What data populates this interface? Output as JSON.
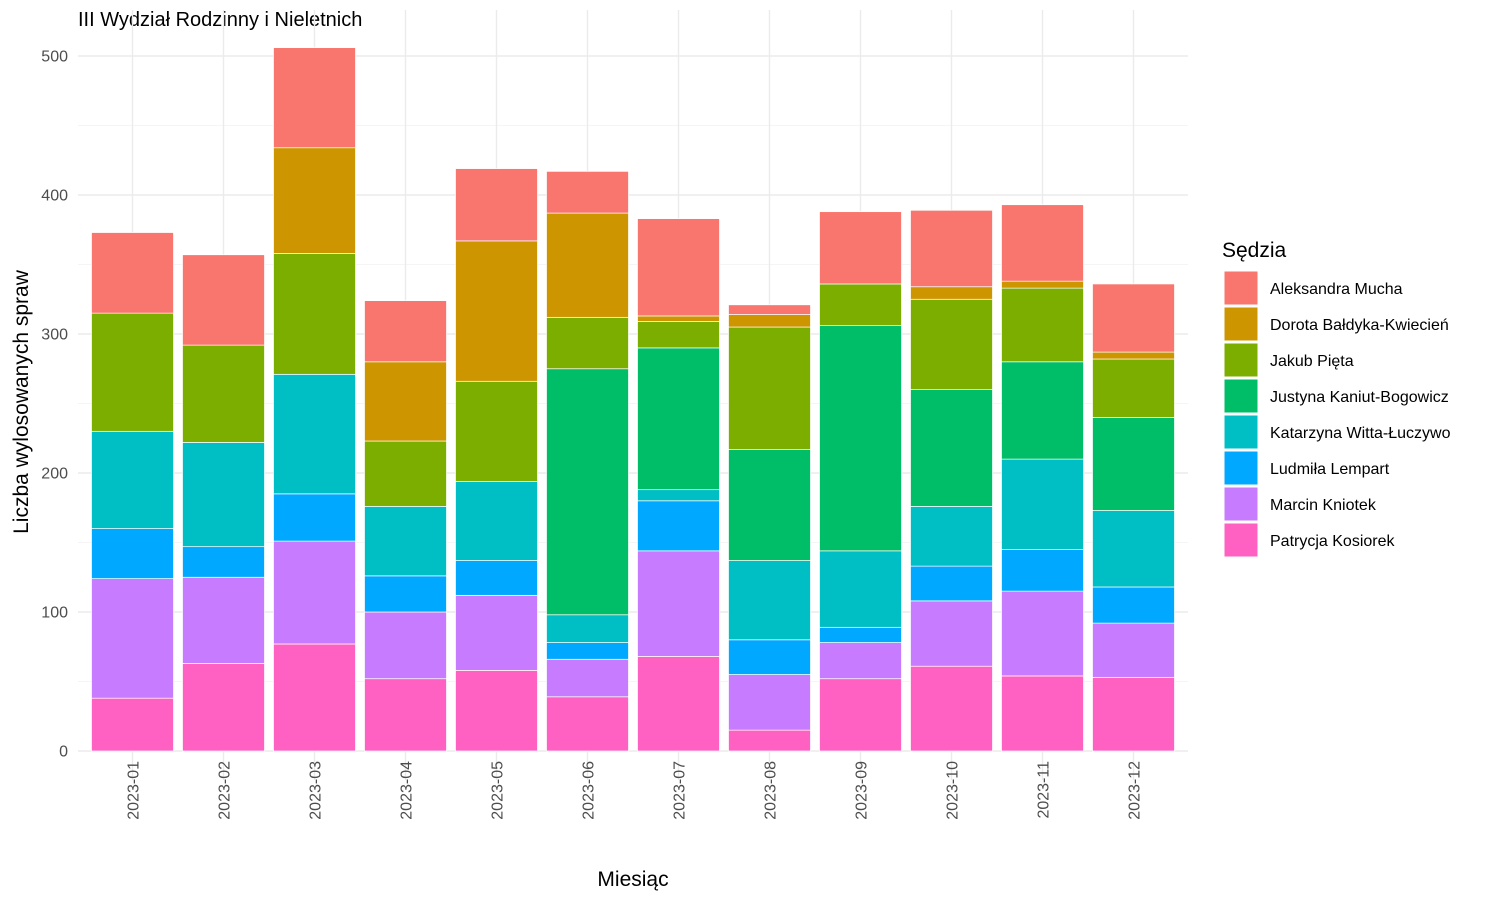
{
  "chart_data": {
    "type": "bar",
    "stacked": true,
    "title": "III Wydział Rodzinny i Nieletnich",
    "xlabel": "Miesiąc",
    "ylabel": "Liczba wylosowanych spraw",
    "ylim": [
      0,
      520
    ],
    "yticks": [
      0,
      100,
      200,
      300,
      400,
      500
    ],
    "grid": true,
    "legend_title": "Sędzia",
    "legend_position": "right",
    "categories": [
      "2023-01",
      "2023-02",
      "2023-03",
      "2023-04",
      "2023-05",
      "2023-06",
      "2023-07",
      "2023-08",
      "2023-09",
      "2023-10",
      "2023-11",
      "2023-12"
    ],
    "series": [
      {
        "name": "Patrycja Kosiorek",
        "color": "#FF61C3",
        "values": [
          38,
          63,
          77,
          52,
          58,
          39,
          68,
          15,
          52,
          61,
          54,
          53
        ]
      },
      {
        "name": "Marcin Kniotek",
        "color": "#C77CFF",
        "values": [
          86,
          62,
          74,
          48,
          54,
          27,
          76,
          40,
          26,
          47,
          61,
          39
        ]
      },
      {
        "name": "Ludmiła Lempart",
        "color": "#00A9FF",
        "values": [
          36,
          22,
          34,
          26,
          25,
          12,
          36,
          25,
          11,
          25,
          30,
          26
        ]
      },
      {
        "name": "Katarzyna Witta-Łuczywo",
        "color": "#00BFC4",
        "values": [
          70,
          75,
          86,
          50,
          57,
          20,
          8,
          57,
          55,
          43,
          65,
          55
        ]
      },
      {
        "name": "Justyna Kaniut-Bogowicz",
        "color": "#00BE67",
        "values": [
          0,
          0,
          0,
          0,
          0,
          177,
          102,
          80,
          162,
          84,
          70,
          67
        ]
      },
      {
        "name": "Jakub Pięta",
        "color": "#7CAE00",
        "values": [
          85,
          70,
          87,
          47,
          72,
          37,
          19,
          88,
          30,
          65,
          53,
          42
        ]
      },
      {
        "name": "Dorota Bałdyka-Kwiecień",
        "color": "#CD9600",
        "values": [
          0,
          0,
          76,
          57,
          101,
          75,
          4,
          9,
          0,
          9,
          5,
          5
        ]
      },
      {
        "name": "Aleksandra Mucha",
        "color": "#F8766D",
        "values": [
          58,
          65,
          72,
          44,
          52,
          30,
          70,
          7,
          52,
          55,
          55,
          49
        ]
      }
    ],
    "legend_order": [
      "Aleksandra Mucha",
      "Dorota Bałdyka-Kwiecień",
      "Jakub Pięta",
      "Justyna Kaniut-Bogowicz",
      "Katarzyna Witta-Łuczywo",
      "Ludmiła Lempart",
      "Marcin Kniotek",
      "Patrycja Kosiorek"
    ]
  }
}
